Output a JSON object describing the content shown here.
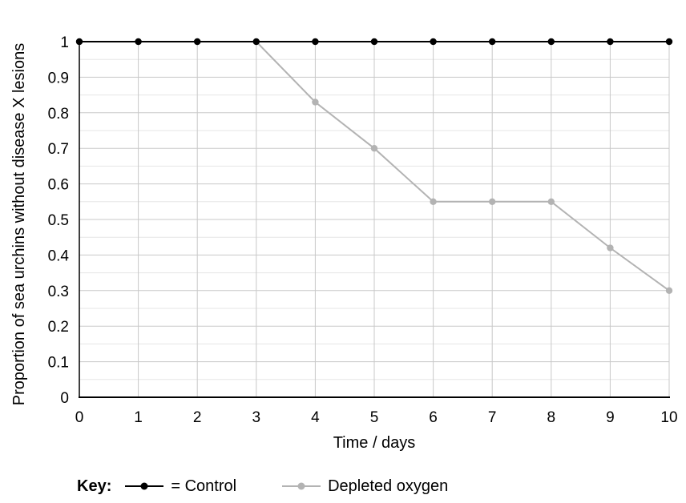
{
  "chart_data": {
    "type": "line",
    "xlabel": "Time / days",
    "ylabel": "Proportion of sea urchins without disease X lesions",
    "x": [
      0,
      1,
      2,
      3,
      4,
      5,
      6,
      7,
      8,
      9,
      10
    ],
    "xlim": [
      0,
      10
    ],
    "ylim": [
      0,
      1
    ],
    "y_ticks": [
      "0",
      "0.1",
      "0.2",
      "0.3",
      "0.4",
      "0.5",
      "0.6",
      "0.7",
      "0.8",
      "0.9",
      "1"
    ],
    "x_ticks": [
      "0",
      "1",
      "2",
      "3",
      "4",
      "5",
      "6",
      "7",
      "8",
      "9",
      "10"
    ],
    "grid": true,
    "series": [
      {
        "name": "Control",
        "color": "#000000",
        "values": [
          1,
          1,
          1,
          1,
          1,
          1,
          1,
          1,
          1,
          1,
          1
        ]
      },
      {
        "name": "Depleted oxygen",
        "color": "#b3b3b3",
        "values": [
          1,
          1,
          1,
          1,
          0.83,
          0.7,
          0.55,
          0.55,
          0.55,
          0.42,
          0.3
        ]
      }
    ]
  },
  "legend": {
    "title": "Key:",
    "placement": "bottom-left",
    "control_label": "= Control",
    "oxygen_label": "Depleted oxygen"
  }
}
